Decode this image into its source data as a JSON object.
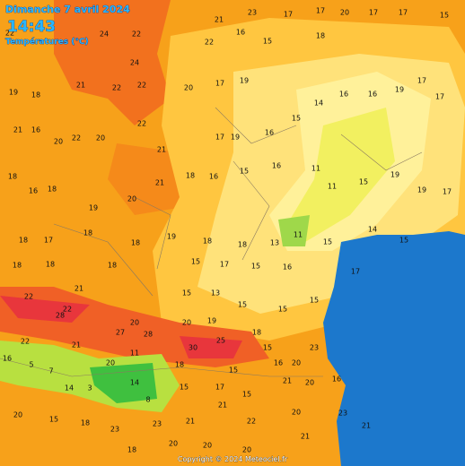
{
  "header": {
    "title": "Dimanche 7 avril 2024",
    "time": "14:43",
    "legend": "Températures (°C)"
  },
  "stations": [
    21,
    23,
    17,
    17,
    20,
    17,
    17,
    15,
    22,
    24,
    22,
    22,
    16,
    15,
    18,
    24,
    22,
    22,
    20,
    17,
    19,
    19,
    18,
    21,
    21,
    16,
    20,
    22,
    20,
    22,
    21,
    17,
    19,
    16,
    15,
    14,
    16,
    16,
    19,
    17,
    17,
    18,
    16,
    18,
    19,
    20,
    21,
    18,
    16,
    15,
    16,
    11,
    11,
    15,
    19,
    19,
    17,
    18,
    17,
    18,
    18,
    19,
    18,
    18,
    13,
    11,
    15,
    14,
    15,
    18,
    18,
    18,
    15,
    17,
    15,
    16,
    17,
    22,
    21,
    15,
    13,
    15,
    15,
    15,
    28,
    22,
    20,
    20,
    19,
    18,
    22,
    21,
    27,
    28,
    30,
    25,
    15,
    23,
    16,
    5,
    7,
    20,
    11,
    18,
    15,
    16,
    20,
    14,
    3,
    14,
    8,
    15,
    17,
    15,
    21,
    20,
    16,
    20,
    15,
    18,
    23,
    23,
    21,
    21,
    22,
    20,
    23,
    21,
    18,
    20,
    20,
    20,
    21
  ],
  "footer": "Copyright © 2024 Meteociel.fr"
}
